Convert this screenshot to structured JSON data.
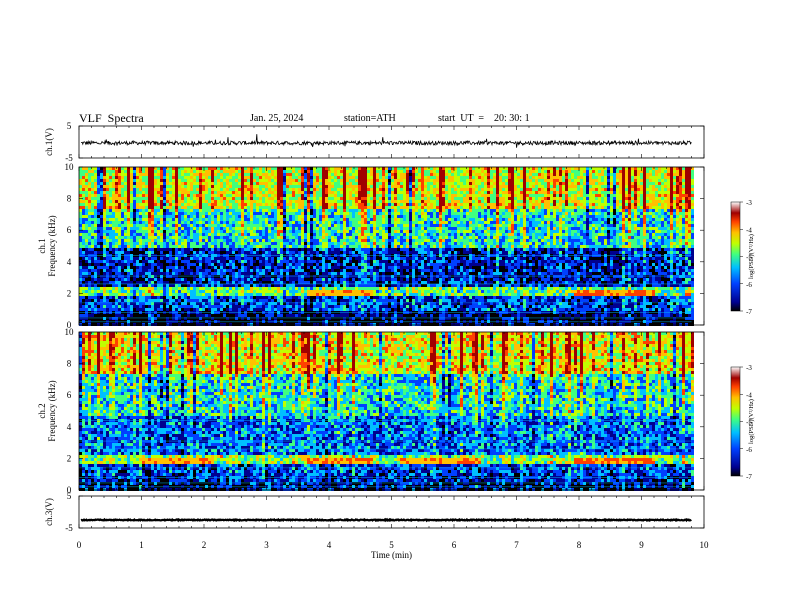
{
  "header": {
    "title": "VLF  Spectra",
    "date": "Jan. 25, 2024",
    "station": "station=ATH",
    "start_ut": "start  UT  =    20: 30: 1"
  },
  "chart_data": [
    {
      "type": "line",
      "panel": "ch1-waveform",
      "ylabel": "ch.1(V)",
      "ylim": [
        -5,
        5
      ],
      "yticks": [
        "5",
        "-5"
      ],
      "xlim": [
        0,
        10
      ],
      "series": [
        {
          "baseline": -0.3,
          "noise_amplitude": 0.6,
          "x_end": 9.8
        }
      ]
    },
    {
      "type": "heatmap",
      "panel": "ch1-spectrogram",
      "ylabel_top": "ch.1",
      "ylabel": "Frequency  (kHz)",
      "ylim": [
        0,
        10
      ],
      "yticks": [
        "0",
        "2",
        "4",
        "6",
        "8",
        "10"
      ],
      "xlim": [
        0,
        9.8
      ],
      "colorbar": {
        "label": "log(PSD)(V²/Hz)",
        "min": -7,
        "max": -3,
        "ticks": [
          "-3",
          "-4",
          "-5",
          "-6",
          "-7"
        ]
      },
      "bands_khz": [
        {
          "from": 0,
          "to": 0.9,
          "level": -6.5
        },
        {
          "from": 0.9,
          "to": 2.0,
          "level": -6.0
        },
        {
          "from": 2.0,
          "to": 2.5,
          "level": -5.0
        },
        {
          "from": 2.5,
          "to": 5.0,
          "level": -6.2
        },
        {
          "from": 5.0,
          "to": 7.5,
          "level": -5.3
        },
        {
          "from": 7.5,
          "to": 10,
          "level": -4.5
        }
      ],
      "features": [
        {
          "t_from": 3.6,
          "t_to": 4.7,
          "f_khz": 2.2,
          "level": -4.0
        },
        {
          "t_from": 7.9,
          "t_to": 9.2,
          "f_khz": 2.2,
          "level": -3.8
        }
      ]
    },
    {
      "type": "heatmap",
      "panel": "ch2-spectrogram",
      "ylabel_top": "ch.2",
      "ylabel": "Frequency  (kHz)",
      "ylim": [
        0,
        10
      ],
      "yticks": [
        "0",
        "2",
        "4",
        "6",
        "8",
        "10"
      ],
      "xlim": [
        0,
        9.8
      ],
      "colorbar": {
        "label": "log(PSD)(V²/Hz)",
        "min": -7,
        "max": -3,
        "ticks": [
          "-3",
          "-4",
          "-5",
          "-6",
          "-7"
        ]
      },
      "bands_khz": [
        {
          "from": 0,
          "to": 1.0,
          "level": -6.2
        },
        {
          "from": 1.0,
          "to": 1.8,
          "level": -6.0
        },
        {
          "from": 1.8,
          "to": 2.3,
          "level": -4.8
        },
        {
          "from": 2.3,
          "to": 4.8,
          "level": -5.8
        },
        {
          "from": 4.8,
          "to": 7.5,
          "level": -5.3
        },
        {
          "from": 7.5,
          "to": 10,
          "level": -4.4
        }
      ],
      "features": [
        {
          "t_from": 1.0,
          "t_to": 2.1,
          "f_khz": 1.9,
          "level": -4.0
        },
        {
          "t_from": 3.6,
          "t_to": 4.7,
          "f_khz": 2.0,
          "level": -3.9
        },
        {
          "t_from": 5.1,
          "t_to": 6.4,
          "f_khz": 1.9,
          "level": -4.0
        },
        {
          "t_from": 7.9,
          "t_to": 9.2,
          "f_khz": 2.0,
          "level": -3.8
        }
      ]
    },
    {
      "type": "line",
      "panel": "ch3-waveform",
      "ylabel": "ch.3(V)",
      "ylim": [
        -5,
        5
      ],
      "yticks": [
        "5",
        "-5"
      ],
      "xlabel": "Time  (min)",
      "xlim": [
        0,
        10
      ],
      "xticks": [
        "0",
        "1",
        "2",
        "3",
        "4",
        "5",
        "6",
        "7",
        "8",
        "9",
        "10"
      ],
      "series": [
        {
          "baseline": -2.5,
          "noise_amplitude": 0.15,
          "x_end": 9.8
        }
      ]
    }
  ],
  "colors": {
    "waveform": "#000000",
    "colormap": [
      "#000000",
      "#00008f",
      "#0040ff",
      "#00c0ff",
      "#40ff80",
      "#c0ff00",
      "#ffc000",
      "#ff4000",
      "#a00000",
      "#ffffff"
    ]
  }
}
